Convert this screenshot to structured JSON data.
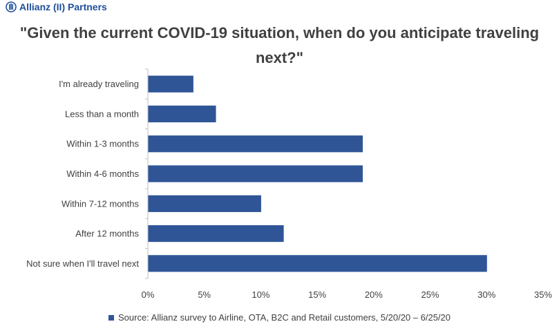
{
  "logo": {
    "text": "Allianz (II) Partners"
  },
  "chart_data": {
    "type": "bar",
    "orientation": "horizontal",
    "title": "\"Given the current COVID-19 situation, when do you anticipate traveling next?\"",
    "categories": [
      "I'm already traveling",
      "Less than a month",
      "Within 1-3 months",
      "Within 4-6 months",
      "Within 7-12 months",
      "After 12 months",
      "Not sure when I'll travel next"
    ],
    "series": [
      {
        "name": "Source: Allianz survey to Airline, OTA, B2C and Retail customers, 5/20/20 – 6/25/20",
        "values": [
          4,
          6,
          19,
          19,
          10,
          12,
          30
        ],
        "color": "#2f5597"
      }
    ],
    "xlim": [
      0,
      35
    ],
    "xticks": [
      "0%",
      "5%",
      "10%",
      "15%",
      "20%",
      "25%",
      "30%",
      "35%"
    ],
    "grid": false,
    "legend_position": "bottom"
  }
}
